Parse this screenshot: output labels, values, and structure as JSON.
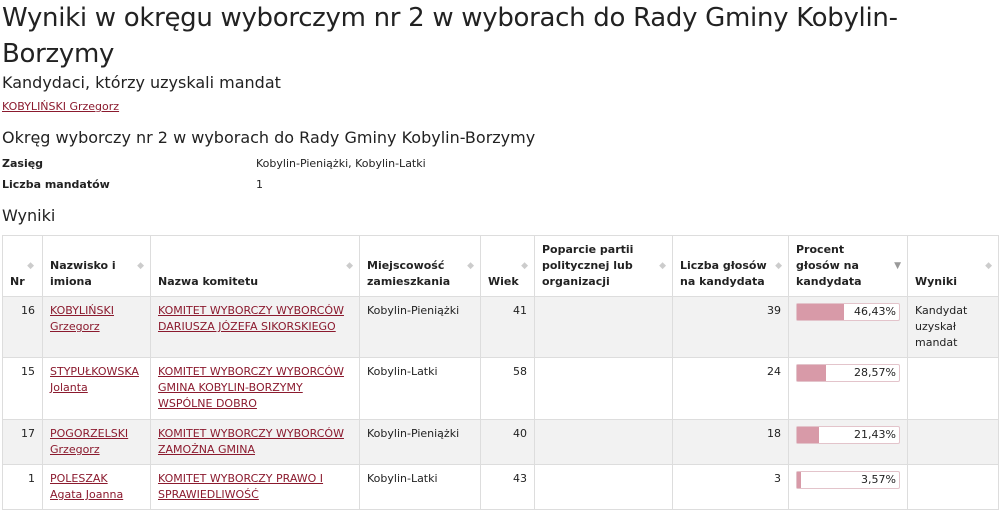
{
  "title": "Wyniki w okręgu wyborczym nr 2 w wyborach do Rady Gminy Kobylin-Borzymy",
  "elected_heading": "Kandydaci, którzy uzyskali mandat",
  "elected": [
    "KOBYLIŃSKI Grzegorz"
  ],
  "district_heading": "Okręg wyborczy nr 2 w wyborach do Rady Gminy Kobylin-Borzymy",
  "info": {
    "zasieg_label": "Zasięg",
    "zasieg": "Kobylin-Pieniążki, Kobylin-Latki",
    "mandaty_label": "Liczba mandatów",
    "mandaty": "1"
  },
  "results_heading": "Wyniki",
  "accent": "#8b1a2e",
  "bar_color": "#d89aa8",
  "columns": [
    "Nr",
    "Nazwisko i imiona",
    "Nazwa komitetu",
    "Miejscowość zamieszkania",
    "Wiek",
    "Poparcie partii politycznej lub organizacji",
    "Liczba głosów na kandydata",
    "Procent głosów na kandydata",
    "Wyniki"
  ],
  "sorted_column": "Procent głosów na kandydata",
  "rows": [
    {
      "nr": "16",
      "name": "KOBYLIŃSKI Grzegorz",
      "committee": "KOMITET WYBORCZY WYBORCÓW DARIUSZA JÓZEFA SIKORSKIEGO",
      "place": "Kobylin-Pieniążki",
      "age": "41",
      "support": "",
      "votes": "39",
      "percent": "46,43%",
      "pct": 46.43,
      "result": "Kandydat uzyskał mandat"
    },
    {
      "nr": "15",
      "name": "STYPUŁKOWSKA Jolanta",
      "committee": "KOMITET WYBORCZY WYBORCÓW GMINA KOBYLIN-BORZYMY WSPÓLNE DOBRO",
      "place": "Kobylin-Latki",
      "age": "58",
      "support": "",
      "votes": "24",
      "percent": "28,57%",
      "pct": 28.57,
      "result": ""
    },
    {
      "nr": "17",
      "name": "POGORZELSKI Grzegorz",
      "committee": "KOMITET WYBORCZY WYBORCÓW ZAMOŻNA GMINA",
      "place": "Kobylin-Pieniążki",
      "age": "40",
      "support": "",
      "votes": "18",
      "percent": "21,43%",
      "pct": 21.43,
      "result": ""
    },
    {
      "nr": "1",
      "name": "POLESZAK Agata Joanna",
      "committee": "KOMITET WYBORCZY PRAWO I SPRAWIEDLIWOŚĆ",
      "place": "Kobylin-Latki",
      "age": "43",
      "support": "",
      "votes": "3",
      "percent": "3,57%",
      "pct": 3.57,
      "result": ""
    }
  ]
}
